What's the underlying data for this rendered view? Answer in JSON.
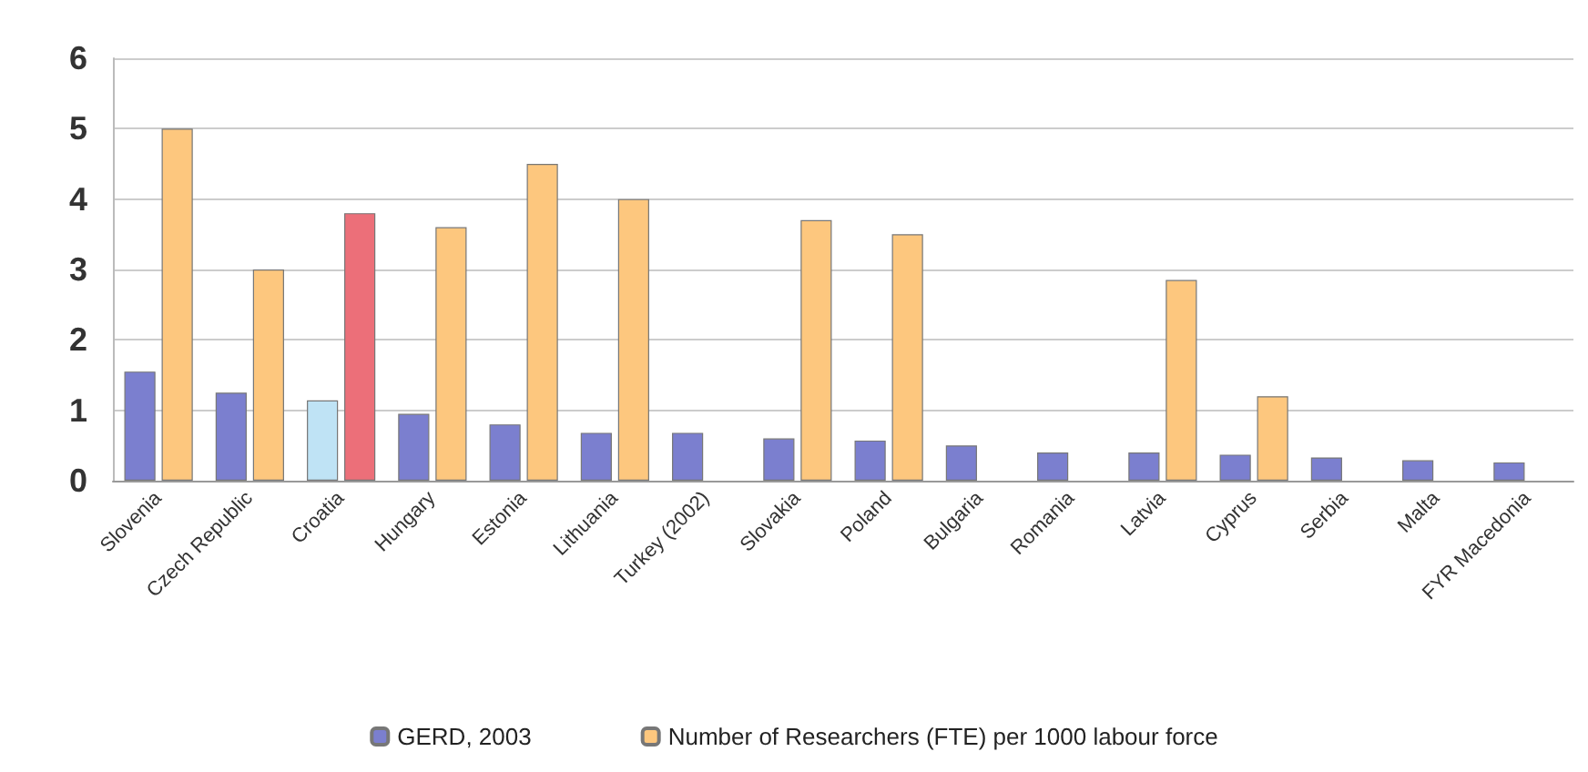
{
  "chart_data": {
    "type": "bar",
    "categories": [
      "Slovenia",
      "Czech Republic",
      "Croatia",
      "Hungary",
      "Estonia",
      "Lithuania",
      "Turkey (2002)",
      "Slovakia",
      "Poland",
      "Bulgaria",
      "Romania",
      "Latvia",
      "Cyprus",
      "Serbia",
      "Malta",
      "FYR Macedonia"
    ],
    "series": [
      {
        "name": "GERD, 2003",
        "color": "#7b7fcf",
        "colors": [
          "#7b7fcf",
          "#7b7fcf",
          "#bfe3f5",
          "#7b7fcf",
          "#7b7fcf",
          "#7b7fcf",
          "#7b7fcf",
          "#7b7fcf",
          "#7b7fcf",
          "#7b7fcf",
          "#7b7fcf",
          "#7b7fcf",
          "#7b7fcf",
          "#7b7fcf",
          "#7b7fcf",
          "#7b7fcf"
        ],
        "values": [
          1.55,
          1.25,
          1.14,
          0.95,
          0.8,
          0.68,
          0.68,
          0.6,
          0.57,
          0.5,
          0.4,
          0.4,
          0.37,
          0.33,
          0.29,
          0.26
        ]
      },
      {
        "name": "Number of Researchers (FTE) per 1000 labour force",
        "color": "#fdc77e",
        "colors": [
          "#fdc77e",
          "#fdc77e",
          "#ec6f79",
          "#fdc77e",
          "#fdc77e",
          "#fdc77e",
          "#fdc77e",
          "#fdc77e",
          "#fdc77e",
          "#fdc77e",
          "#fdc77e",
          "#fdc77e",
          "#fdc77e",
          "#fdc77e",
          "#fdc77e",
          "#fdc77e"
        ],
        "values": [
          5.0,
          3.0,
          3.8,
          3.6,
          4.5,
          4.0,
          null,
          3.7,
          3.5,
          null,
          null,
          2.85,
          1.2,
          null,
          null,
          null
        ]
      }
    ],
    "ylim": [
      0,
      6
    ],
    "yticks": [
      0,
      1,
      2,
      3,
      4,
      5,
      6
    ],
    "grid": "y",
    "legend": "bottom"
  }
}
